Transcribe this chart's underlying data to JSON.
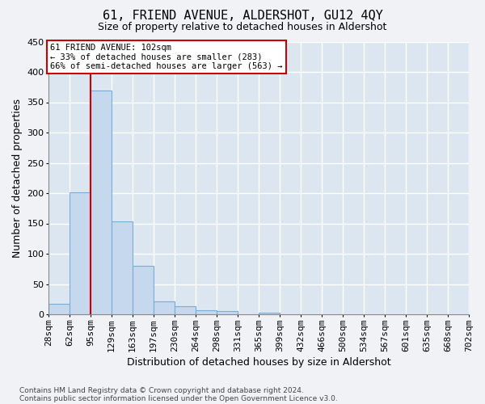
{
  "title": "61, FRIEND AVENUE, ALDERSHOT, GU12 4QY",
  "subtitle": "Size of property relative to detached houses in Aldershot",
  "xlabel": "Distribution of detached houses by size in Aldershot",
  "ylabel": "Number of detached properties",
  "bar_color": "#c5d8ee",
  "bar_edge_color": "#7aadd4",
  "plot_bg_color": "#dce6f0",
  "fig_bg_color": "#f0f2f5",
  "grid_color": "#ffffff",
  "bin_labels": [
    "28sqm",
    "62sqm",
    "95sqm",
    "129sqm",
    "163sqm",
    "197sqm",
    "230sqm",
    "264sqm",
    "298sqm",
    "331sqm",
    "365sqm",
    "399sqm",
    "432sqm",
    "466sqm",
    "500sqm",
    "534sqm",
    "567sqm",
    "601sqm",
    "635sqm",
    "668sqm",
    "702sqm"
  ],
  "bar_values": [
    18,
    201,
    370,
    154,
    80,
    21,
    14,
    7,
    6,
    0,
    3,
    0,
    0,
    0,
    0,
    0,
    0,
    0,
    0,
    0
  ],
  "vline_color": "#cc0000",
  "vline_x_idx": 2,
  "annotation_line1": "61 FRIEND AVENUE: 102sqm",
  "annotation_line2": "← 33% of detached houses are smaller (283)",
  "annotation_line3": "66% of semi-detached houses are larger (563) →",
  "annotation_box_facecolor": "#ffffff",
  "annotation_box_edgecolor": "#cc0000",
  "ylim": [
    0,
    450
  ],
  "yticks": [
    0,
    50,
    100,
    150,
    200,
    250,
    300,
    350,
    400,
    450
  ],
  "footer_line1": "Contains HM Land Registry data © Crown copyright and database right 2024.",
  "footer_line2": "Contains public sector information licensed under the Open Government Licence v3.0.",
  "title_fontsize": 11,
  "subtitle_fontsize": 9,
  "ylabel_fontsize": 9,
  "xlabel_fontsize": 9,
  "tick_fontsize": 8,
  "annotation_fontsize": 7.5,
  "footer_fontsize": 6.5
}
